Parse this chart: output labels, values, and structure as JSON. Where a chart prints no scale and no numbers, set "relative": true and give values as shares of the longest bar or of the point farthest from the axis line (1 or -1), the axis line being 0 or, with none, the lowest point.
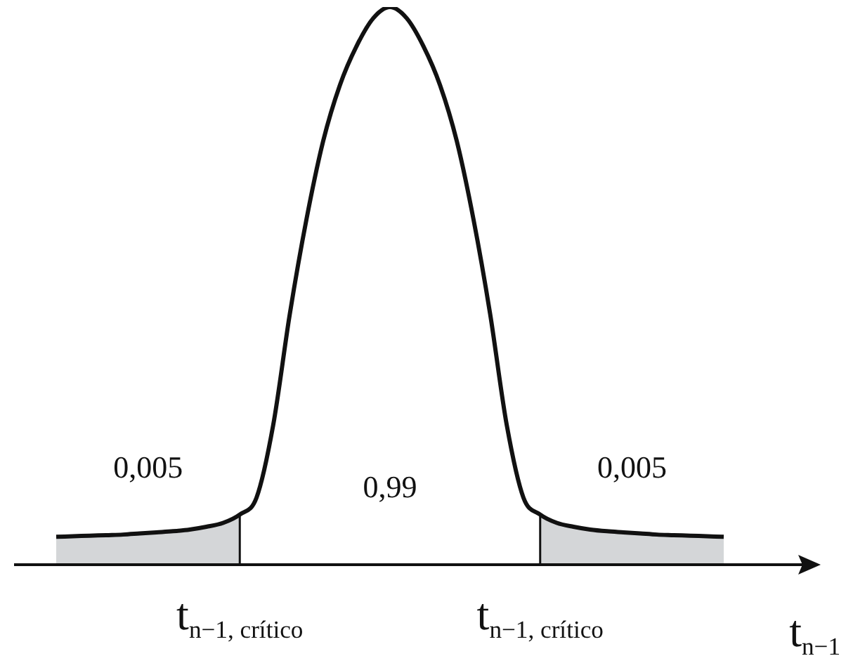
{
  "chart_data": {
    "type": "line",
    "relative": true,
    "xlabel": "t$_{n−1}$",
    "categories": [
      null,
      null,
      null,
      null,
      null,
      null,
      null,
      null,
      null,
      null,
      null,
      null,
      null,
      null,
      null,
      null,
      null,
      null,
      null,
      null,
      null,
      null,
      null,
      null,
      null,
      null,
      null,
      null,
      null,
      null,
      null,
      null,
      null,
      null,
      null,
      null,
      null,
      null,
      null,
      null,
      null
    ],
    "series": [
      {
        "type": "line",
        "color": "#111111",
        "values": [
          0.05,
          0.051,
          0.052,
          0.053,
          0.054,
          0.056,
          0.058,
          0.06,
          0.063,
          0.068,
          0.075,
          0.09,
          0.12,
          0.25,
          0.45,
          0.62,
          0.76,
          0.86,
          0.93,
          0.98,
          1.0,
          0.98,
          0.93,
          0.86,
          0.76,
          0.62,
          0.45,
          0.25,
          0.12,
          0.09,
          0.075,
          0.068,
          0.063,
          0.06,
          0.058,
          0.056,
          0.054,
          0.053,
          0.052,
          0.051,
          0.05
        ]
      },
      {
        "type": "area",
        "color": "#d4d6d8",
        "values": [
          0.05,
          0.051,
          0.052,
          0.053,
          0.054,
          0.056,
          0.058,
          0.06,
          0.063,
          0.068,
          0.075,
          0.09,
          null,
          null,
          null,
          null,
          null,
          null,
          null,
          null,
          null,
          null,
          null,
          null,
          null,
          null,
          null,
          null,
          null,
          0.09,
          0.075,
          0.068,
          0.063,
          0.06,
          0.058,
          0.056,
          0.054,
          0.053,
          0.052,
          0.051,
          0.05
        ]
      }
    ],
    "annotations": [
      "0,005",
      "0,99",
      "0,005",
      "t$_{n−1, crítico}$",
      "t$_{n−1, crítico}$"
    ],
    "legend": false,
    "grid": false,
    "marker": "none",
    "line_style": "solid"
  }
}
